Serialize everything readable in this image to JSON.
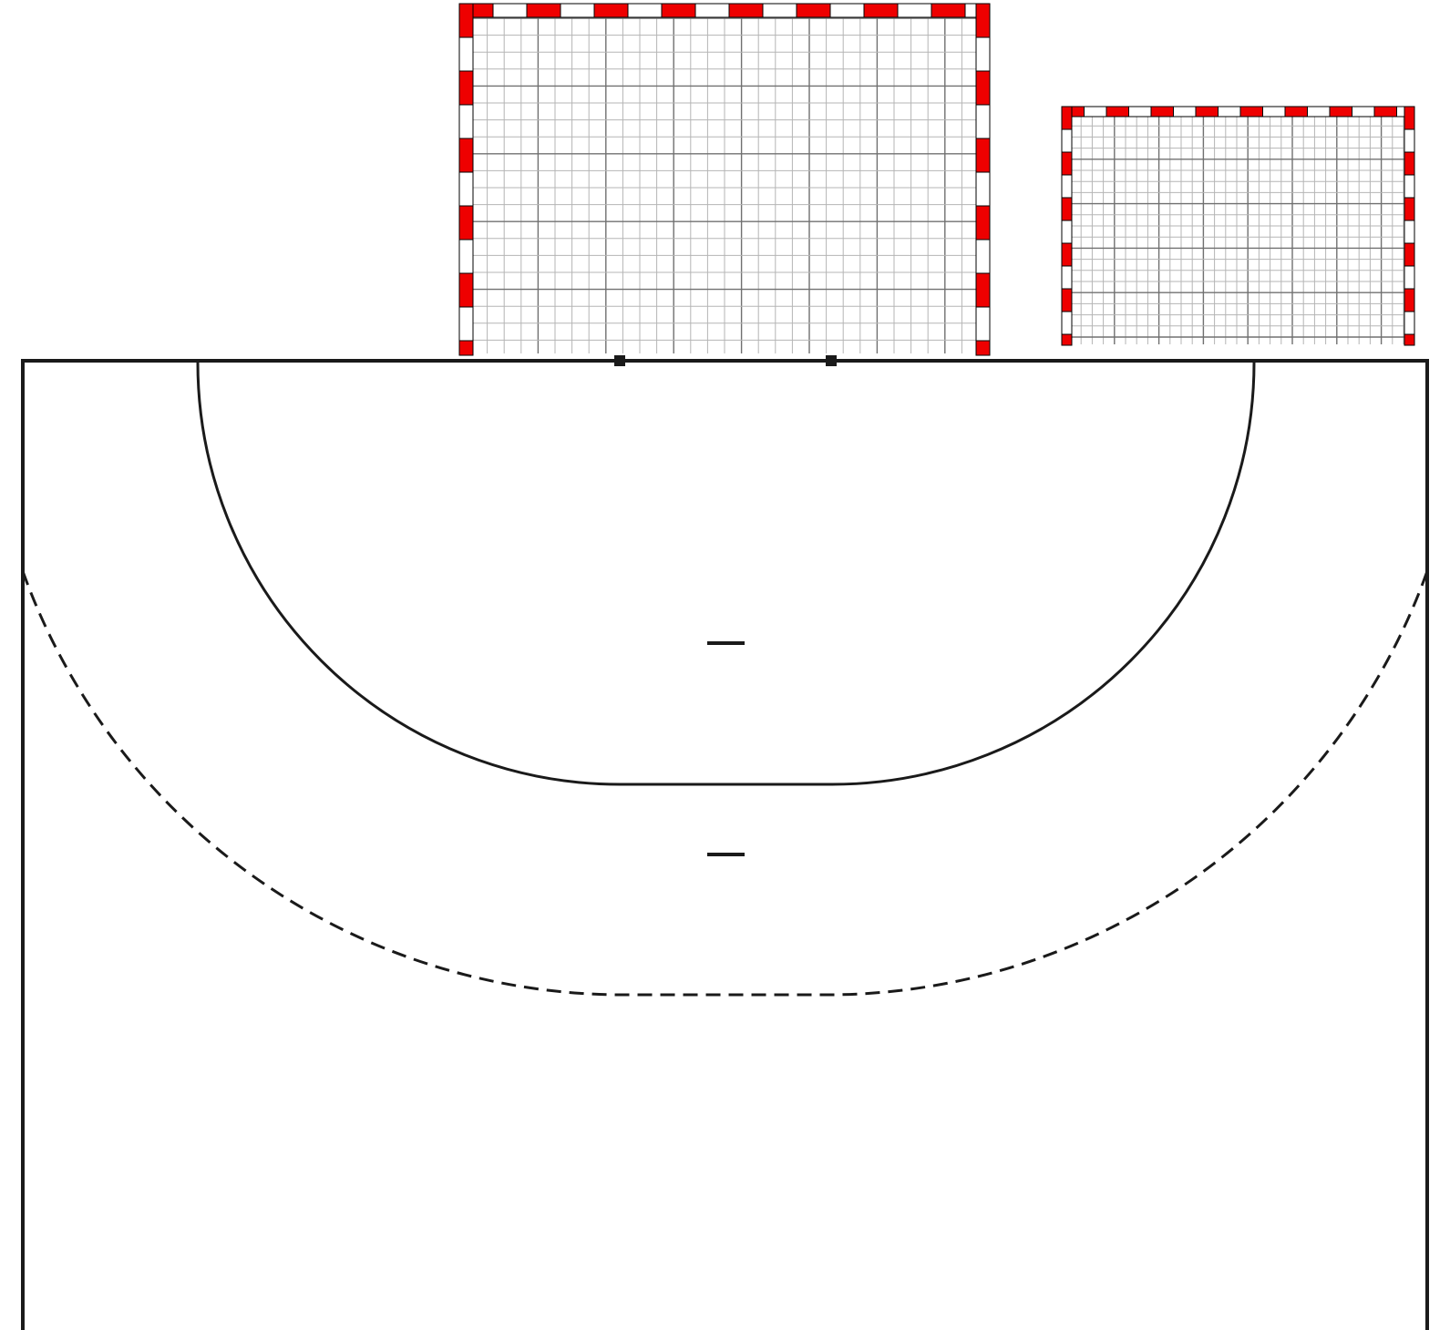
{
  "diagram": {
    "kind": "handball-court-half",
    "colors": {
      "background": "#ffffff",
      "line": "#1a1a1a",
      "post_stripe_red": "#ee0000",
      "post_stripe_white": "#ffffff",
      "net_minor": "#b5b5b5",
      "net_major": "#707070"
    },
    "goals": [
      {
        "id": "goal-main",
        "role": "front view at goal line"
      },
      {
        "id": "goal-secondary",
        "role": "smaller front view"
      }
    ],
    "court": {
      "goal_area_line": "solid",
      "free_throw_line": "dashed",
      "goal_posts_marked": true,
      "penalty_marks": 2
    }
  }
}
